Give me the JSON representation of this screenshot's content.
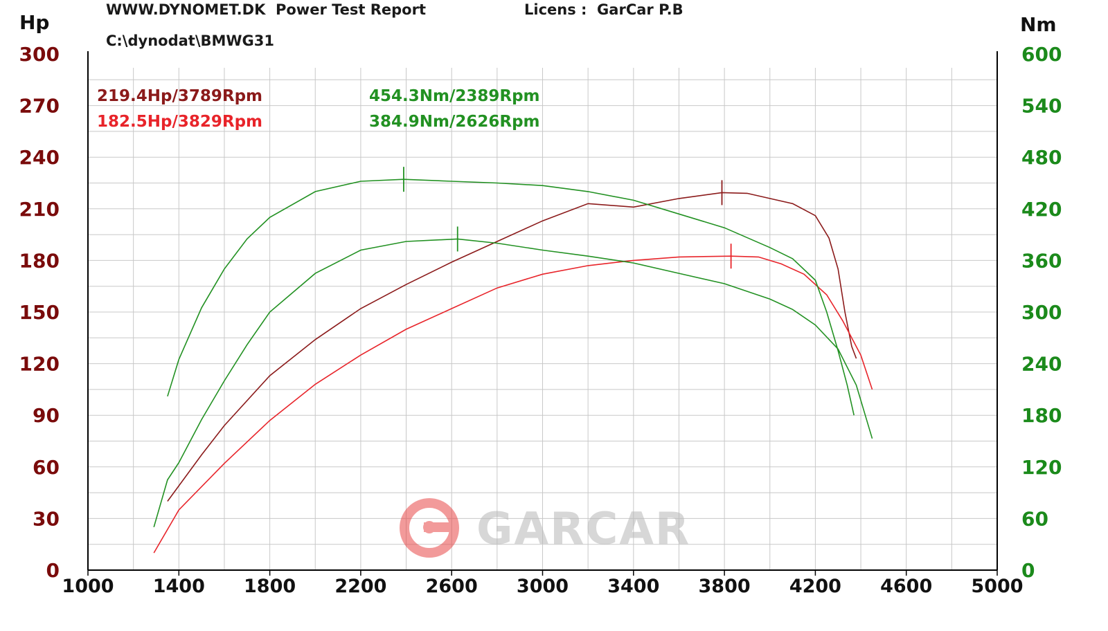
{
  "header": {
    "title": "WWW.DYNOMET.DK  Power Test Report",
    "license": "Licens :  GarCar P.B",
    "file": "C:\\dynodat\\BMWG31"
  },
  "watermark": {
    "text": "GARCAR"
  },
  "colors": {
    "hp_tuned": "#8b1a1a",
    "hp_stock": "#e8242a",
    "torque": "#229122",
    "axis_left": "#7a0b0b",
    "axis_right": "#1b8a1b",
    "grid": "#c8c8c8"
  },
  "chart_data": {
    "type": "line",
    "x_axis": {
      "ticks": [
        1000,
        1400,
        1800,
        2200,
        2600,
        3000,
        3400,
        3800,
        4200,
        4600,
        5000
      ],
      "range": [
        1000,
        5000
      ]
    },
    "y_left": {
      "label": "Hp",
      "ticks": [
        0,
        30,
        60,
        90,
        120,
        150,
        180,
        210,
        240,
        270,
        300
      ],
      "range": [
        0,
        300
      ]
    },
    "y_right": {
      "label": "Nm",
      "ticks": [
        0,
        60,
        120,
        180,
        240,
        300,
        360,
        420,
        480,
        540,
        600
      ],
      "range": [
        0,
        600
      ]
    },
    "grid": true,
    "annotations": [
      {
        "text": "219.4Hp/3789Rpm",
        "color": "#8b1a1a"
      },
      {
        "text": "182.5Hp/3829Rpm",
        "color": "#e8242a"
      },
      {
        "text": "454.3Nm/2389Rpm",
        "color": "#229122"
      },
      {
        "text": "384.9Nm/2626Rpm",
        "color": "#229122"
      }
    ],
    "series": [
      {
        "axis": "left",
        "color": "#8b1a1a",
        "peak": [
          3789,
          219.4
        ],
        "points": [
          [
            1350,
            40
          ],
          [
            1500,
            67
          ],
          [
            1600,
            84
          ],
          [
            1800,
            113
          ],
          [
            2000,
            134
          ],
          [
            2200,
            152
          ],
          [
            2400,
            166
          ],
          [
            2600,
            179
          ],
          [
            2800,
            191
          ],
          [
            3000,
            203
          ],
          [
            3200,
            213
          ],
          [
            3400,
            211
          ],
          [
            3600,
            216
          ],
          [
            3789,
            219.4
          ],
          [
            3900,
            219
          ],
          [
            4000,
            216
          ],
          [
            4100,
            213
          ],
          [
            4200,
            206
          ],
          [
            4260,
            193
          ],
          [
            4300,
            175
          ],
          [
            4330,
            150
          ],
          [
            4360,
            130
          ],
          [
            4380,
            123
          ]
        ]
      },
      {
        "axis": "left",
        "color": "#e8242a",
        "peak": [
          3829,
          182.5
        ],
        "points": [
          [
            1290,
            10
          ],
          [
            1400,
            35
          ],
          [
            1600,
            62
          ],
          [
            1800,
            87
          ],
          [
            2000,
            108
          ],
          [
            2200,
            125
          ],
          [
            2400,
            140
          ],
          [
            2600,
            152
          ],
          [
            2800,
            164
          ],
          [
            3000,
            172
          ],
          [
            3200,
            177
          ],
          [
            3400,
            180
          ],
          [
            3600,
            182
          ],
          [
            3829,
            182.5
          ],
          [
            3950,
            182
          ],
          [
            4050,
            178
          ],
          [
            4150,
            172
          ],
          [
            4250,
            160
          ],
          [
            4320,
            145
          ],
          [
            4400,
            125
          ],
          [
            4450,
            105
          ]
        ]
      },
      {
        "axis": "right",
        "color": "#229122",
        "peak": [
          2389,
          454.3
        ],
        "points": [
          [
            1350,
            202
          ],
          [
            1400,
            245
          ],
          [
            1500,
            305
          ],
          [
            1600,
            350
          ],
          [
            1700,
            385
          ],
          [
            1800,
            410
          ],
          [
            2000,
            440
          ],
          [
            2200,
            452
          ],
          [
            2389,
            454.3
          ],
          [
            2600,
            452
          ],
          [
            2800,
            450
          ],
          [
            3000,
            447
          ],
          [
            3200,
            440
          ],
          [
            3400,
            430
          ],
          [
            3600,
            414
          ],
          [
            3800,
            398
          ],
          [
            4000,
            375
          ],
          [
            4100,
            362
          ],
          [
            4200,
            337
          ],
          [
            4250,
            300
          ],
          [
            4300,
            255
          ],
          [
            4340,
            215
          ],
          [
            4370,
            180
          ]
        ]
      },
      {
        "axis": "right",
        "color": "#229122",
        "peak": [
          2626,
          384.9
        ],
        "points": [
          [
            1290,
            50
          ],
          [
            1350,
            105
          ],
          [
            1400,
            125
          ],
          [
            1500,
            175
          ],
          [
            1600,
            220
          ],
          [
            1700,
            262
          ],
          [
            1800,
            300
          ],
          [
            2000,
            345
          ],
          [
            2200,
            372
          ],
          [
            2400,
            382
          ],
          [
            2626,
            384.9
          ],
          [
            2800,
            380
          ],
          [
            3000,
            372
          ],
          [
            3200,
            365
          ],
          [
            3400,
            357
          ],
          [
            3600,
            345
          ],
          [
            3800,
            333
          ],
          [
            4000,
            315
          ],
          [
            4100,
            303
          ],
          [
            4200,
            285
          ],
          [
            4300,
            257
          ],
          [
            4380,
            215
          ],
          [
            4450,
            153
          ]
        ]
      }
    ]
  }
}
